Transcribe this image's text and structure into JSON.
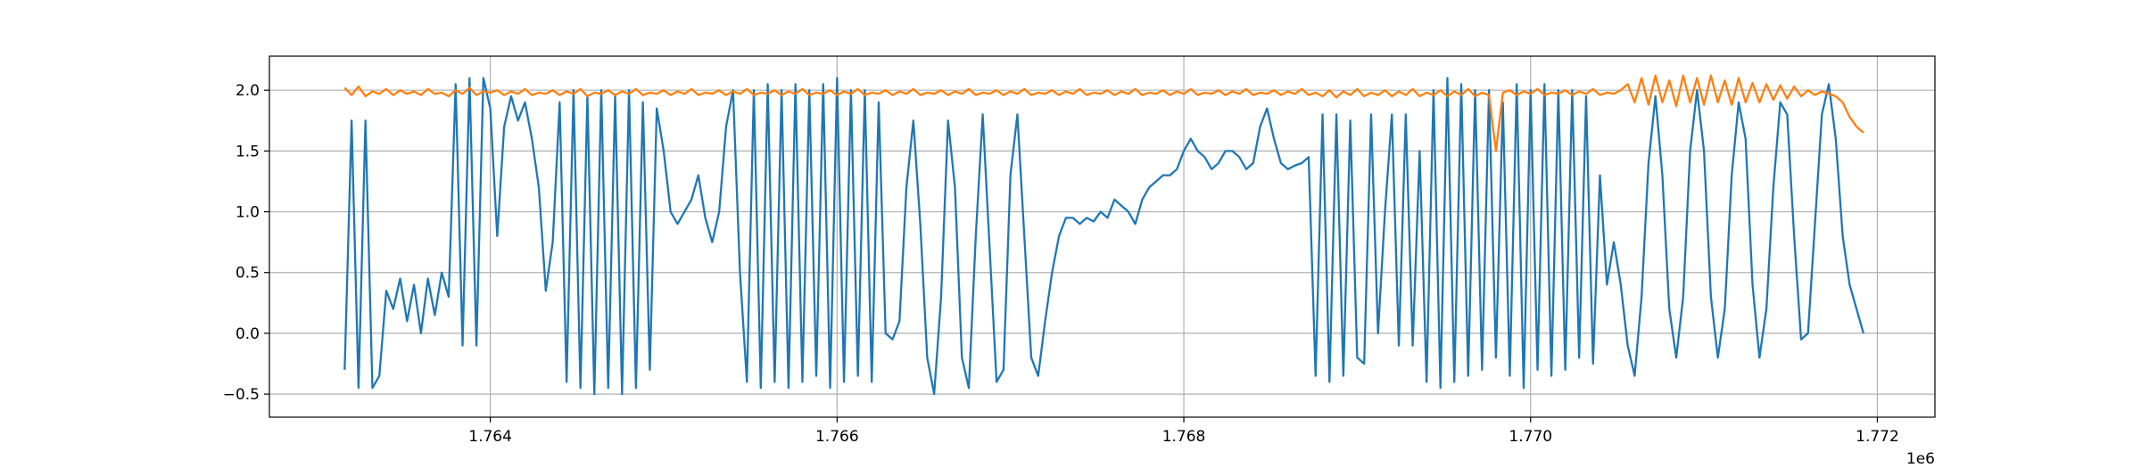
{
  "chart_data": {
    "type": "line",
    "x": [
      1763160,
      1763200,
      1763240,
      1763280,
      1763320,
      1763360,
      1763400,
      1763440,
      1763480,
      1763520,
      1763560,
      1763600,
      1763640,
      1763680,
      1763720,
      1763760,
      1763800,
      1763840,
      1763880,
      1763920,
      1763960,
      1764000,
      1764040,
      1764080,
      1764120,
      1764160,
      1764200,
      1764240,
      1764280,
      1764320,
      1764360,
      1764400,
      1764440,
      1764480,
      1764520,
      1764560,
      1764600,
      1764640,
      1764680,
      1764720,
      1764760,
      1764800,
      1764840,
      1764880,
      1764920,
      1764960,
      1765000,
      1765040,
      1765080,
      1765120,
      1765160,
      1765200,
      1765240,
      1765280,
      1765320,
      1765360,
      1765400,
      1765440,
      1765480,
      1765520,
      1765560,
      1765600,
      1765640,
      1765680,
      1765720,
      1765760,
      1765800,
      1765840,
      1765880,
      1765920,
      1765960,
      1766000,
      1766040,
      1766080,
      1766120,
      1766160,
      1766200,
      1766240,
      1766280,
      1766320,
      1766360,
      1766400,
      1766440,
      1766480,
      1766520,
      1766560,
      1766600,
      1766640,
      1766680,
      1766720,
      1766760,
      1766800,
      1766840,
      1766880,
      1766920,
      1766960,
      1767000,
      1767040,
      1767080,
      1767120,
      1767160,
      1767200,
      1767240,
      1767280,
      1767320,
      1767360,
      1767400,
      1767440,
      1767480,
      1767520,
      1767560,
      1767600,
      1767640,
      1767680,
      1767720,
      1767760,
      1767800,
      1767840,
      1767880,
      1767920,
      1767960,
      1768000,
      1768040,
      1768080,
      1768120,
      1768160,
      1768200,
      1768240,
      1768280,
      1768320,
      1768360,
      1768400,
      1768440,
      1768480,
      1768520,
      1768560,
      1768600,
      1768640,
      1768680,
      1768720,
      1768760,
      1768800,
      1768840,
      1768880,
      1768920,
      1768960,
      1769000,
      1769040,
      1769080,
      1769120,
      1769160,
      1769200,
      1769240,
      1769280,
      1769320,
      1769360,
      1769400,
      1769440,
      1769480,
      1769520,
      1769560,
      1769600,
      1769640,
      1769680,
      1769720,
      1769760,
      1769800,
      1769840,
      1769880,
      1769920,
      1769960,
      1770000,
      1770040,
      1770080,
      1770120,
      1770160,
      1770200,
      1770240,
      1770280,
      1770320,
      1770360,
      1770400,
      1770440,
      1770480,
      1770520,
      1770560,
      1770600,
      1770640,
      1770680,
      1770720,
      1770760,
      1770800,
      1770840,
      1770880,
      1770920,
      1770960,
      1771000,
      1771040,
      1771080,
      1771120,
      1771160,
      1771200,
      1771240,
      1771280,
      1771320,
      1771360,
      1771400,
      1771440,
      1771480,
      1771520,
      1771560,
      1771600,
      1771640,
      1771680,
      1771720,
      1771760,
      1771800,
      1771840,
      1771880,
      1771920
    ],
    "series": [
      {
        "color": "#1f77b4",
        "values": [
          -0.3,
          1.75,
          -0.45,
          1.75,
          -0.45,
          -0.35,
          0.35,
          0.2,
          0.45,
          0.1,
          0.4,
          0.0,
          0.45,
          0.15,
          0.5,
          0.3,
          2.05,
          -0.1,
          2.1,
          -0.1,
          2.1,
          1.85,
          0.8,
          1.7,
          1.95,
          1.75,
          1.9,
          1.6,
          1.2,
          0.35,
          0.75,
          1.9,
          -0.4,
          2.0,
          -0.45,
          1.95,
          -0.5,
          2.0,
          -0.45,
          1.95,
          -0.5,
          2.0,
          -0.45,
          1.9,
          -0.3,
          1.85,
          1.5,
          1.0,
          0.9,
          1.0,
          1.1,
          1.3,
          0.95,
          0.75,
          1.0,
          1.7,
          2.0,
          0.5,
          -0.4,
          2.0,
          -0.45,
          2.05,
          -0.4,
          2.0,
          -0.45,
          2.05,
          -0.4,
          2.0,
          -0.35,
          2.05,
          -0.45,
          2.1,
          -0.4,
          2.0,
          -0.35,
          2.0,
          -0.4,
          1.9,
          0.0,
          -0.05,
          0.1,
          1.2,
          1.75,
          0.9,
          -0.2,
          -0.5,
          0.3,
          1.75,
          1.2,
          -0.2,
          -0.45,
          0.8,
          1.8,
          0.7,
          -0.4,
          -0.3,
          1.3,
          1.8,
          0.8,
          -0.2,
          -0.35,
          0.1,
          0.5,
          0.8,
          0.95,
          0.95,
          0.9,
          0.95,
          0.92,
          1.0,
          0.95,
          1.1,
          1.05,
          1.0,
          0.9,
          1.1,
          1.2,
          1.25,
          1.3,
          1.3,
          1.35,
          1.5,
          1.6,
          1.5,
          1.45,
          1.35,
          1.4,
          1.5,
          1.5,
          1.45,
          1.35,
          1.4,
          1.7,
          1.85,
          1.6,
          1.4,
          1.35,
          1.38,
          1.4,
          1.45,
          -0.35,
          1.8,
          -0.4,
          1.8,
          -0.35,
          1.75,
          -0.2,
          -0.25,
          1.8,
          0.0,
          1.0,
          1.8,
          -0.1,
          1.8,
          -0.1,
          1.5,
          -0.4,
          2.0,
          -0.45,
          2.1,
          -0.4,
          2.05,
          -0.35,
          2.0,
          -0.3,
          2.0,
          -0.2,
          1.9,
          -0.35,
          2.05,
          -0.45,
          2.0,
          -0.3,
          2.05,
          -0.35,
          2.0,
          -0.3,
          2.0,
          -0.2,
          1.95,
          -0.25,
          1.3,
          0.4,
          0.75,
          0.4,
          -0.1,
          -0.35,
          0.3,
          1.4,
          1.95,
          1.3,
          0.2,
          -0.2,
          0.3,
          1.5,
          2.0,
          1.5,
          0.3,
          -0.2,
          0.2,
          1.3,
          1.9,
          1.6,
          0.4,
          -0.2,
          0.2,
          1.2,
          1.9,
          1.8,
          0.8,
          -0.05,
          0.0,
          0.9,
          1.8,
          2.05,
          1.6,
          0.8,
          0.4,
          0.2,
          0.0
        ]
      },
      {
        "color": "#ff7f0e",
        "values": [
          2.02,
          1.96,
          2.03,
          1.95,
          1.99,
          1.97,
          2.01,
          1.96,
          2.0,
          1.97,
          1.99,
          1.96,
          2.01,
          1.97,
          1.98,
          1.95,
          2.0,
          1.97,
          2.02,
          1.96,
          1.99,
          1.98,
          2.0,
          1.96,
          1.99,
          1.97,
          2.01,
          1.96,
          1.98,
          1.97,
          2.0,
          1.96,
          1.99,
          1.97,
          2.01,
          1.95,
          1.98,
          1.97,
          2.0,
          1.96,
          1.99,
          1.97,
          2.01,
          1.96,
          1.98,
          1.97,
          2.0,
          1.96,
          1.99,
          1.97,
          2.01,
          1.96,
          1.98,
          1.97,
          2.0,
          1.96,
          1.99,
          1.97,
          2.01,
          1.96,
          1.98,
          1.97,
          2.0,
          1.96,
          1.99,
          1.97,
          2.01,
          1.96,
          1.98,
          1.97,
          2.0,
          1.96,
          1.99,
          1.97,
          2.01,
          1.96,
          1.98,
          1.97,
          2.0,
          1.96,
          1.99,
          1.97,
          2.01,
          1.96,
          1.98,
          1.97,
          2.0,
          1.96,
          1.99,
          1.97,
          2.01,
          1.96,
          1.98,
          1.97,
          2.0,
          1.96,
          1.99,
          1.97,
          2.01,
          1.96,
          1.98,
          1.97,
          2.0,
          1.96,
          1.99,
          1.97,
          2.01,
          1.96,
          1.98,
          1.97,
          2.0,
          1.96,
          1.99,
          1.97,
          2.01,
          1.96,
          1.98,
          1.97,
          2.0,
          1.96,
          1.99,
          1.97,
          2.01,
          1.96,
          1.98,
          1.97,
          2.0,
          1.96,
          1.99,
          1.97,
          2.01,
          1.96,
          1.98,
          1.97,
          2.0,
          1.96,
          1.99,
          1.97,
          2.01,
          1.96,
          1.98,
          1.95,
          2.0,
          1.94,
          1.99,
          1.96,
          2.01,
          1.95,
          1.98,
          1.96,
          2.0,
          1.95,
          1.99,
          1.96,
          2.01,
          1.95,
          1.98,
          1.96,
          2.0,
          1.95,
          1.99,
          1.96,
          2.01,
          1.95,
          1.98,
          1.96,
          1.5,
          1.98,
          2.0,
          1.96,
          1.99,
          1.97,
          2.01,
          1.96,
          1.98,
          1.97,
          2.0,
          1.96,
          1.99,
          1.97,
          2.01,
          1.96,
          1.98,
          1.97,
          2.0,
          2.05,
          1.9,
          2.1,
          1.88,
          2.12,
          1.9,
          2.08,
          1.87,
          2.12,
          1.9,
          2.1,
          1.88,
          2.12,
          1.9,
          2.08,
          1.88,
          2.1,
          1.9,
          2.06,
          1.9,
          2.05,
          1.92,
          2.04,
          1.93,
          2.03,
          1.95,
          2.0,
          1.96,
          1.99,
          1.97,
          1.95,
          1.9,
          1.78,
          1.7,
          1.65
        ]
      }
    ],
    "xlim": [
      1762726,
      1772332
    ],
    "ylim": [
      -0.69,
      2.28
    ],
    "xticks": [
      {
        "value": 1764000,
        "label": "1.764"
      },
      {
        "value": 1766000,
        "label": "1.766"
      },
      {
        "value": 1768000,
        "label": "1.768"
      },
      {
        "value": 1770000,
        "label": "1.770"
      },
      {
        "value": 1772000,
        "label": "1.772"
      }
    ],
    "yticks": [
      {
        "value": -0.5,
        "label": "−0.5"
      },
      {
        "value": 0,
        "label": "0.0"
      },
      0.5,
      {
        "value": 1,
        "label": "1.0"
      },
      1.5,
      {
        "value": 2,
        "label": "2.0"
      }
    ],
    "x_offset_label": "1e6",
    "grid": true
  }
}
